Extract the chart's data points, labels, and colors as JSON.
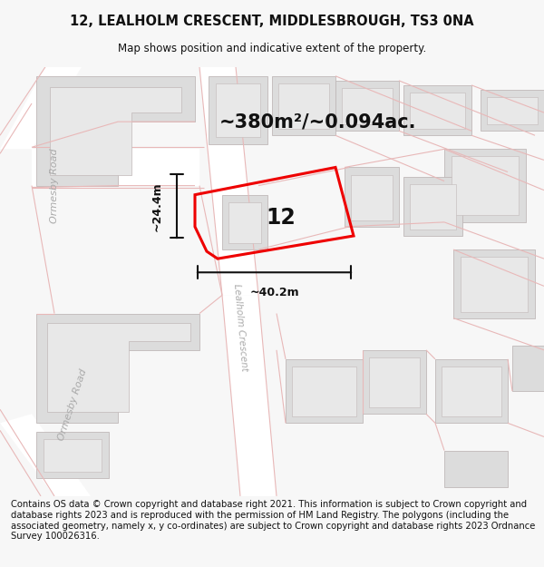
{
  "title_line1": "12, LEALHOLM CRESCENT, MIDDLESBROUGH, TS3 0NA",
  "title_line2": "Map shows position and indicative extent of the property.",
  "area_text": "~380m²/~0.094ac.",
  "dim_width": "~40.2m",
  "dim_height": "~24.4m",
  "plot_label": "12",
  "footer_text": "Contains OS data © Crown copyright and database right 2021. This information is subject to Crown copyright and database rights 2023 and is reproduced with the permission of HM Land Registry. The polygons (including the associated geometry, namely x, y co-ordinates) are subject to Crown copyright and database rights 2023 Ordnance Survey 100026316.",
  "bg_color": "#f7f7f7",
  "map_bg": "#f2f0f0",
  "road_fill": "#ffffff",
  "building_fill": "#dcdcdc",
  "building_edge": "#c0b8b8",
  "highlight_color": "#ee0000",
  "road_line_color": "#e8b8b8",
  "dim_line_color": "#111111",
  "text_color": "#111111",
  "road_label_color": "#aaaaaa",
  "title_fontsize": 10.5,
  "subtitle_fontsize": 8.5,
  "area_fontsize": 15,
  "label_fontsize": 17,
  "footer_fontsize": 7.2,
  "road_lw": 0.8,
  "building_lw": 0.6,
  "prop_lw": 2.2
}
